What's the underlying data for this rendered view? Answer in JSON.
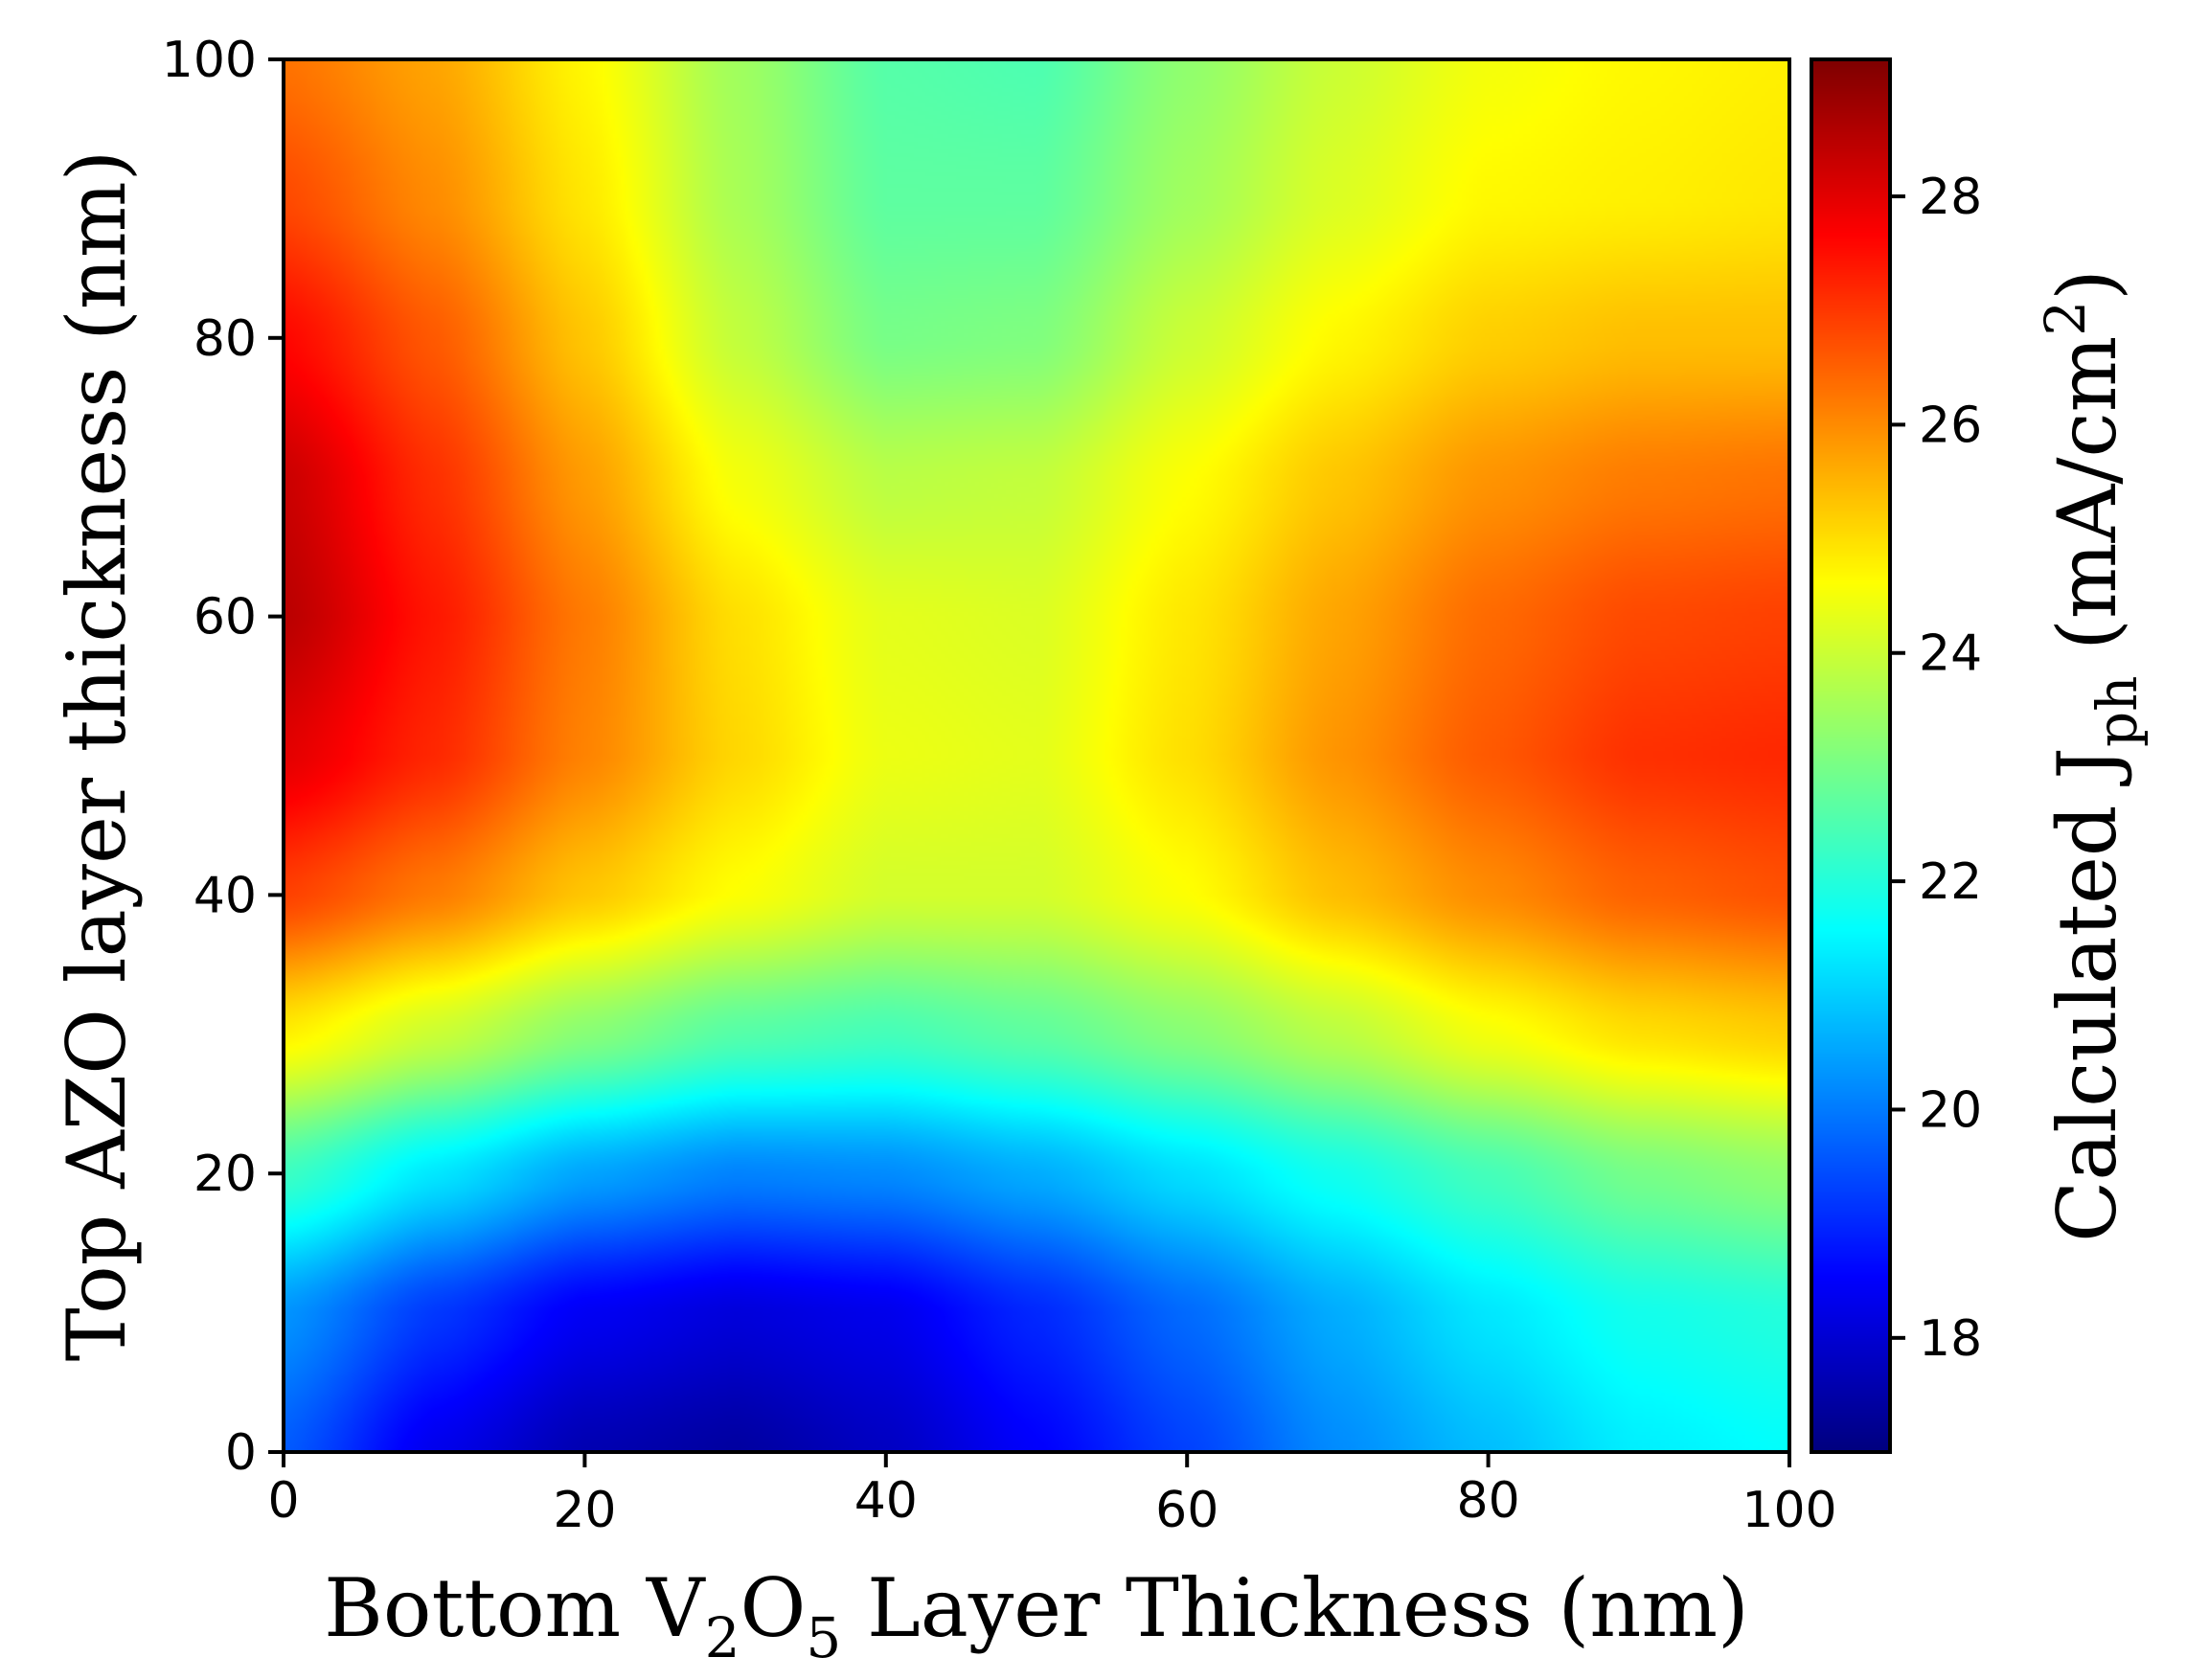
{
  "chart_data": {
    "type": "heatmap",
    "xlabel": {
      "prefix": "Bottom V",
      "sub1": "2",
      "mid": "O",
      "sub2": "5",
      "suffix": " Layer Thickness (nm)"
    },
    "ylabel": "Top AZO layer thickness (nm)",
    "colorbar_label": {
      "prefix": "Calculated J",
      "sub": "ph",
      "mid": " (mA/cm",
      "sup": "2",
      "suffix": ")"
    },
    "xlim": [
      0,
      100
    ],
    "ylim": [
      0,
      100
    ],
    "x_ticks": [
      "0",
      "20",
      "40",
      "60",
      "80",
      "100"
    ],
    "y_ticks": [
      "0",
      "20",
      "40",
      "60",
      "80",
      "100"
    ],
    "colorbar_range": [
      17,
      29.2
    ],
    "colorbar_ticks": [
      "18",
      "20",
      "22",
      "24",
      "26",
      "28"
    ],
    "colormap": "jet",
    "x": [
      0,
      10,
      20,
      30,
      40,
      50,
      60,
      70,
      80,
      90,
      100
    ],
    "y": [
      0,
      10,
      20,
      30,
      40,
      50,
      60,
      70,
      80,
      90,
      100
    ],
    "z": [
      [
        19.6,
        18.3,
        17.6,
        17.4,
        17.8,
        18.5,
        19.3,
        20.2,
        20.8,
        21.4,
        21.6
      ],
      [
        20.3,
        19.2,
        18.4,
        18.1,
        18.3,
        19.0,
        19.8,
        20.6,
        21.3,
        21.8,
        22.0
      ],
      [
        22.3,
        21.3,
        20.5,
        20.1,
        20.2,
        20.6,
        21.2,
        21.8,
        22.4,
        23.0,
        23.3
      ],
      [
        24.8,
        24.0,
        23.2,
        22.6,
        22.4,
        22.7,
        23.2,
        23.8,
        24.5,
        25.0,
        25.2
      ],
      [
        26.9,
        26.2,
        25.3,
        24.6,
        24.1,
        24.1,
        24.6,
        25.4,
        26.0,
        26.5,
        26.7
      ],
      [
        28.0,
        27.2,
        26.1,
        25.1,
        24.4,
        24.3,
        25.0,
        25.9,
        26.6,
        27.1,
        27.2
      ],
      [
        28.5,
        27.4,
        26.2,
        25.0,
        24.3,
        24.2,
        24.9,
        25.7,
        26.4,
        26.8,
        26.9
      ],
      [
        28.3,
        27.1,
        25.8,
        24.5,
        23.8,
        23.9,
        24.6,
        25.3,
        25.9,
        26.2,
        26.3
      ],
      [
        27.6,
        26.6,
        25.3,
        23.9,
        23.0,
        23.1,
        24.0,
        24.7,
        25.2,
        25.4,
        25.4
      ],
      [
        26.8,
        26.0,
        24.9,
        23.6,
        22.7,
        22.7,
        23.5,
        24.2,
        24.7,
        24.8,
        24.9
      ],
      [
        26.3,
        25.7,
        24.7,
        23.5,
        22.6,
        22.5,
        23.3,
        24.0,
        24.5,
        24.7,
        24.8
      ]
    ]
  }
}
